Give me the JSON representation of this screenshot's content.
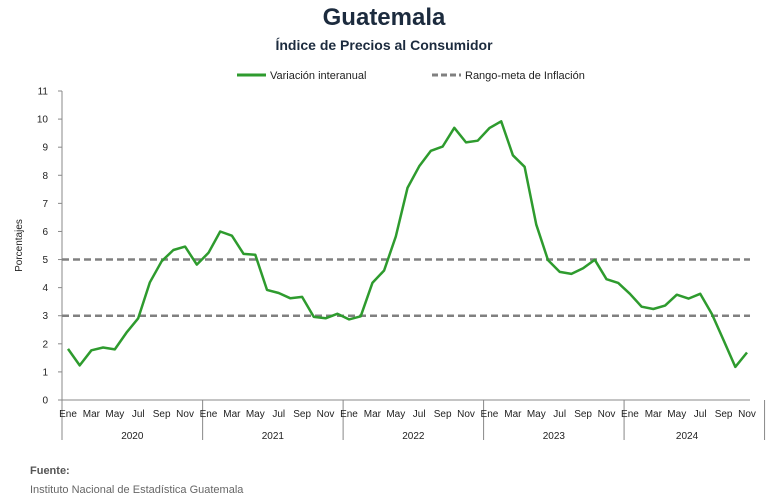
{
  "header": {
    "title": "Guatemala",
    "subtitle": "Índice de Precios al Consumidor"
  },
  "source": {
    "label": "Fuente:",
    "text": "Instituto Nacional de Estadística Guatemala"
  },
  "colors": {
    "series": "#2e9b2e",
    "target": "#808080",
    "axis": "#888888"
  },
  "chart_data": {
    "type": "line",
    "ylabel": "Porcentajes",
    "ylim": [
      0,
      11
    ],
    "yticks": [
      0,
      1,
      2,
      3,
      4,
      5,
      6,
      7,
      8,
      9,
      10,
      11
    ],
    "grid": false,
    "legend_position": "top",
    "month_labels": [
      "Ene",
      "Mar",
      "May",
      "Jul",
      "Sep",
      "Nov"
    ],
    "years": [
      "2020",
      "2021",
      "2022",
      "2023",
      "2024"
    ],
    "series": [
      {
        "name": "Variación interanual",
        "values": [
          1.82,
          1.23,
          1.77,
          1.87,
          1.8,
          2.4,
          2.91,
          4.19,
          4.94,
          5.34,
          5.46,
          4.82,
          5.24,
          6.0,
          5.85,
          5.2,
          5.17,
          3.92,
          3.81,
          3.62,
          3.67,
          2.96,
          2.91,
          3.07,
          2.87,
          2.98,
          4.17,
          4.61,
          5.82,
          7.55,
          8.32,
          8.87,
          9.02,
          9.69,
          9.17,
          9.23,
          9.68,
          9.92,
          8.71,
          8.3,
          6.24,
          4.98,
          4.56,
          4.49,
          4.69,
          4.99,
          4.3,
          4.17,
          3.78,
          3.32,
          3.24,
          3.36,
          3.75,
          3.61,
          3.78,
          3.06,
          2.13,
          1.18,
          1.69
        ]
      },
      {
        "name": "Rango-meta de Inflación",
        "lines": [
          5,
          3
        ]
      }
    ]
  }
}
